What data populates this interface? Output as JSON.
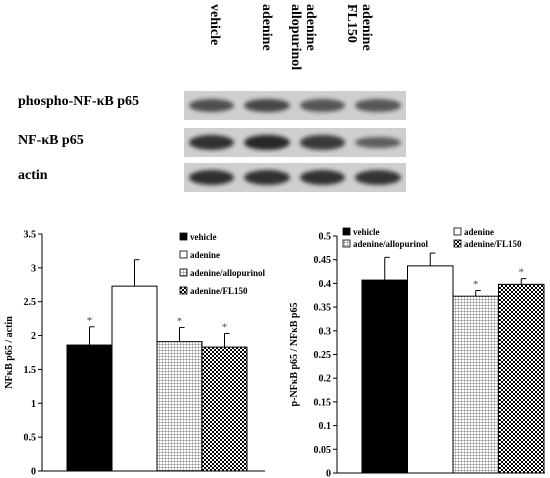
{
  "blot": {
    "lanes": [
      "vehicle",
      "adenine",
      "adenine allopurinol",
      "adenine FL150"
    ],
    "rows": [
      {
        "label": "phospho-NF-κB p65",
        "intensity": [
          0.55,
          0.62,
          0.5,
          0.48
        ]
      },
      {
        "label": "NF-κB p65",
        "intensity": [
          0.8,
          0.88,
          0.72,
          0.42
        ]
      },
      {
        "label": "actin",
        "intensity": [
          0.82,
          0.8,
          0.8,
          0.78
        ]
      }
    ]
  },
  "colors": {
    "bar_edge": "#000000",
    "axis": "#000000",
    "blot_background": "#cfcfcf",
    "band": "#1a1a1a"
  },
  "chart_data": [
    {
      "type": "bar",
      "ylabel": "NFκB p65 / actin",
      "ylim": [
        0,
        3.5
      ],
      "yticks": [
        "0",
        "0.5",
        "1",
        "1.5",
        "2",
        "2.5",
        "3",
        "3.5"
      ],
      "legend_placement": "top-right",
      "legend_columns": 1,
      "series": [
        {
          "name": "vehicle",
          "value": 1.86,
          "error": 0.27,
          "significance": "*",
          "fill": "solid-black"
        },
        {
          "name": "adenine",
          "value": 2.73,
          "error": 0.39,
          "significance": "",
          "fill": "white"
        },
        {
          "name": "adenine/allopurinol",
          "value": 1.91,
          "error": 0.21,
          "significance": "*",
          "fill": "grid"
        },
        {
          "name": "adenine/FL150",
          "value": 1.83,
          "error": 0.2,
          "significance": "*",
          "fill": "checker"
        }
      ]
    },
    {
      "type": "bar",
      "ylabel": "p-NFκB p65 / NFκB p65",
      "ylim": [
        0,
        0.5
      ],
      "yticks": [
        "0",
        "0.05",
        "0.1",
        "0.15",
        "0.2",
        "0.25",
        "0.3",
        "0.35",
        "0.4",
        "0.45",
        "0.5"
      ],
      "legend_placement": "top",
      "legend_columns": 2,
      "series": [
        {
          "name": "vehicle",
          "value": 0.407,
          "error": 0.048,
          "significance": "",
          "fill": "solid-black"
        },
        {
          "name": "adenine",
          "value": 0.437,
          "error": 0.027,
          "significance": "",
          "fill": "white"
        },
        {
          "name": "adenine/allopurinol",
          "value": 0.373,
          "error": 0.012,
          "significance": "*",
          "fill": "grid"
        },
        {
          "name": "adenine/FL150",
          "value": 0.398,
          "error": 0.012,
          "significance": "*",
          "fill": "checker"
        }
      ]
    }
  ]
}
